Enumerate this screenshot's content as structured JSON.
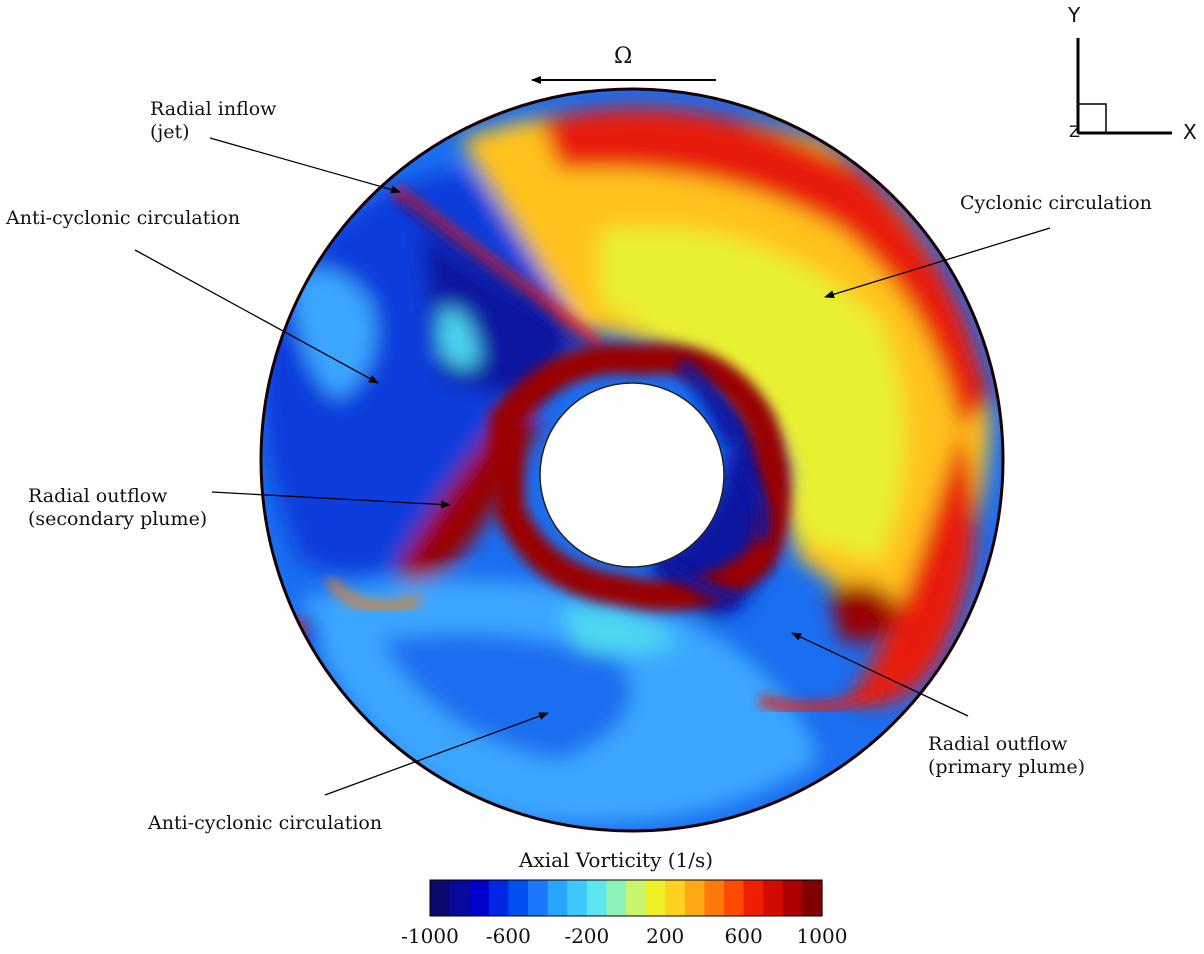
{
  "rotation": {
    "label": "Ω"
  },
  "axes_triad": {
    "y": "Y",
    "x": "X",
    "z": "Z"
  },
  "annotations": {
    "radial_inflow": {
      "line1": "Radial inflow",
      "line2": "(jet)"
    },
    "anti_cyclonic_upper": "Anti-cyclonic circulation",
    "cyclonic": "Cyclonic circulation",
    "radial_outflow_secondary": {
      "line1": "Radial outflow",
      "line2": "(secondary plume)"
    },
    "radial_outflow_primary": {
      "line1": "Radial outflow",
      "line2": "(primary plume)"
    },
    "anti_cyclonic_lower": "Anti-cyclonic circulation"
  },
  "colorbar": {
    "title": "Axial Vorticity (1/s)",
    "min": -1000,
    "max": 1000,
    "tick_labels": [
      "-1000",
      "-600",
      "-200",
      "200",
      "600",
      "1000"
    ],
    "colors": [
      "#0a0a6e",
      "#0a0a9a",
      "#0000c8",
      "#0026e6",
      "#0050f0",
      "#1a78ff",
      "#2aa4ff",
      "#3ec8ff",
      "#5ee6f0",
      "#8cf2b8",
      "#c8f46e",
      "#f0f028",
      "#ffd21e",
      "#ffaa14",
      "#ff7a0a",
      "#ff4a00",
      "#f01e00",
      "#d20a00",
      "#aa0000",
      "#800000"
    ]
  },
  "field_colors": {
    "deep_blue": "#0a14a0",
    "blue": "#0a3cdc",
    "mid_blue": "#1a6ef0",
    "light_blue": "#3aa6ff",
    "cyan": "#4ed8f0",
    "yellow": "#e8f032",
    "yellow_orange": "#ffc21e",
    "orange": "#ff9a14",
    "red": "#e81e0a",
    "dark_red": "#9a0000"
  }
}
